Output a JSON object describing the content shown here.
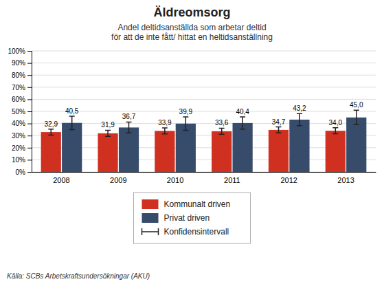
{
  "chart_data": {
    "type": "bar",
    "title": "Äldreomsorg",
    "subtitle": "Andel deltidsanställda som arbetar deltid\nför att de inte fått/ hittat en heltidsanställning",
    "categories": [
      "2008",
      "2009",
      "2010",
      "2011",
      "2012",
      "2013"
    ],
    "series": [
      {
        "name": "Kommunalt driven",
        "color": "#D03020",
        "values": [
          32.9,
          31.9,
          33.9,
          33.6,
          34.7,
          34.0
        ],
        "value_labels": [
          "32,9",
          "31,9",
          "33,9",
          "33,6",
          "34,7",
          "34,0"
        ],
        "err_low": [
          2.5,
          2.5,
          2.5,
          2.5,
          2.5,
          2.5
        ],
        "err_high": [
          2.5,
          2.5,
          2.5,
          2.5,
          2.5,
          2.5
        ]
      },
      {
        "name": "Privat driven",
        "color": "#374B6B",
        "values": [
          40.5,
          36.7,
          39.9,
          40.4,
          43.2,
          45.0
        ],
        "value_labels": [
          "40,5",
          "36,7",
          "39,9",
          "40,4",
          "43,2",
          "45,0"
        ],
        "err_low": [
          5.5,
          4.5,
          5.5,
          5.0,
          5.0,
          6.0
        ],
        "err_high": [
          5.5,
          4.5,
          5.5,
          5.0,
          5.0,
          6.0
        ]
      }
    ],
    "error_name": "Konfidensintervall",
    "ylim": [
      0,
      100
    ],
    "yticks": [
      {
        "value": 0,
        "label": "0%"
      },
      {
        "value": 10,
        "label": "10%"
      },
      {
        "value": 20,
        "label": "20%"
      },
      {
        "value": 30,
        "label": "30%"
      },
      {
        "value": 40,
        "label": "40%"
      },
      {
        "value": 50,
        "label": "50%"
      },
      {
        "value": 60,
        "label": "60%"
      },
      {
        "value": 70,
        "label": "70%"
      },
      {
        "value": 80,
        "label": "80%"
      },
      {
        "value": 90,
        "label": "90%"
      },
      {
        "value": 100,
        "label": "100%"
      }
    ],
    "grid": true,
    "legend": "bottom",
    "data_labels": true,
    "source": "Källa: SCBs Arbetskraftsundersökningar (AKU)"
  }
}
